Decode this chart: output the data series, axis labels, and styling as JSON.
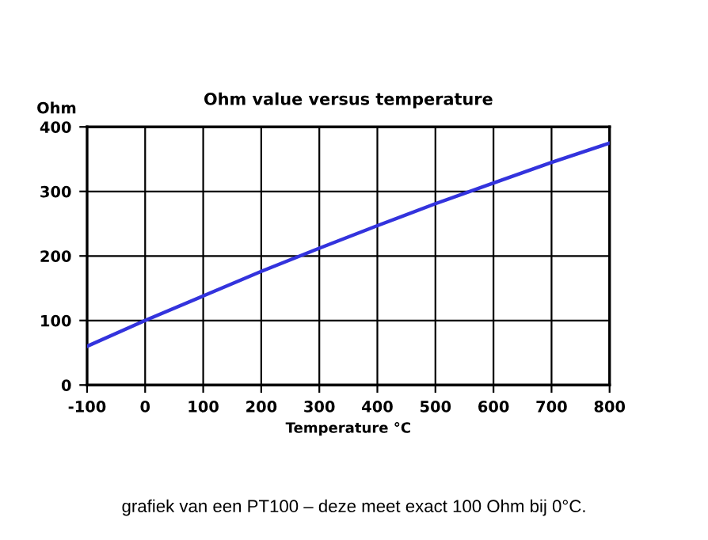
{
  "chart_data": {
    "type": "line",
    "title": "Ohm value versus temperature",
    "ylabel": "Ohm",
    "xlabel": "Temperature °C",
    "annotations": [
      "grafiek van een PT100 – deze meet exact 100 Ohm bij 0°C."
    ],
    "x": [
      -100,
      0,
      100,
      200,
      300,
      400,
      500,
      600,
      700,
      800
    ],
    "series": [
      {
        "color": "#3333dd",
        "values": [
          60,
          100,
          138,
          176,
          212,
          247,
          281,
          313,
          345,
          375
        ]
      }
    ],
    "xlim": [
      -100,
      800
    ],
    "xticks": [
      -100,
      0,
      100,
      200,
      300,
      400,
      500,
      600,
      700,
      800
    ],
    "ylim": [
      0,
      400
    ],
    "yticks": [
      0,
      100,
      200,
      300,
      400
    ],
    "grid": true,
    "line_style": "solid",
    "marker": "none"
  }
}
